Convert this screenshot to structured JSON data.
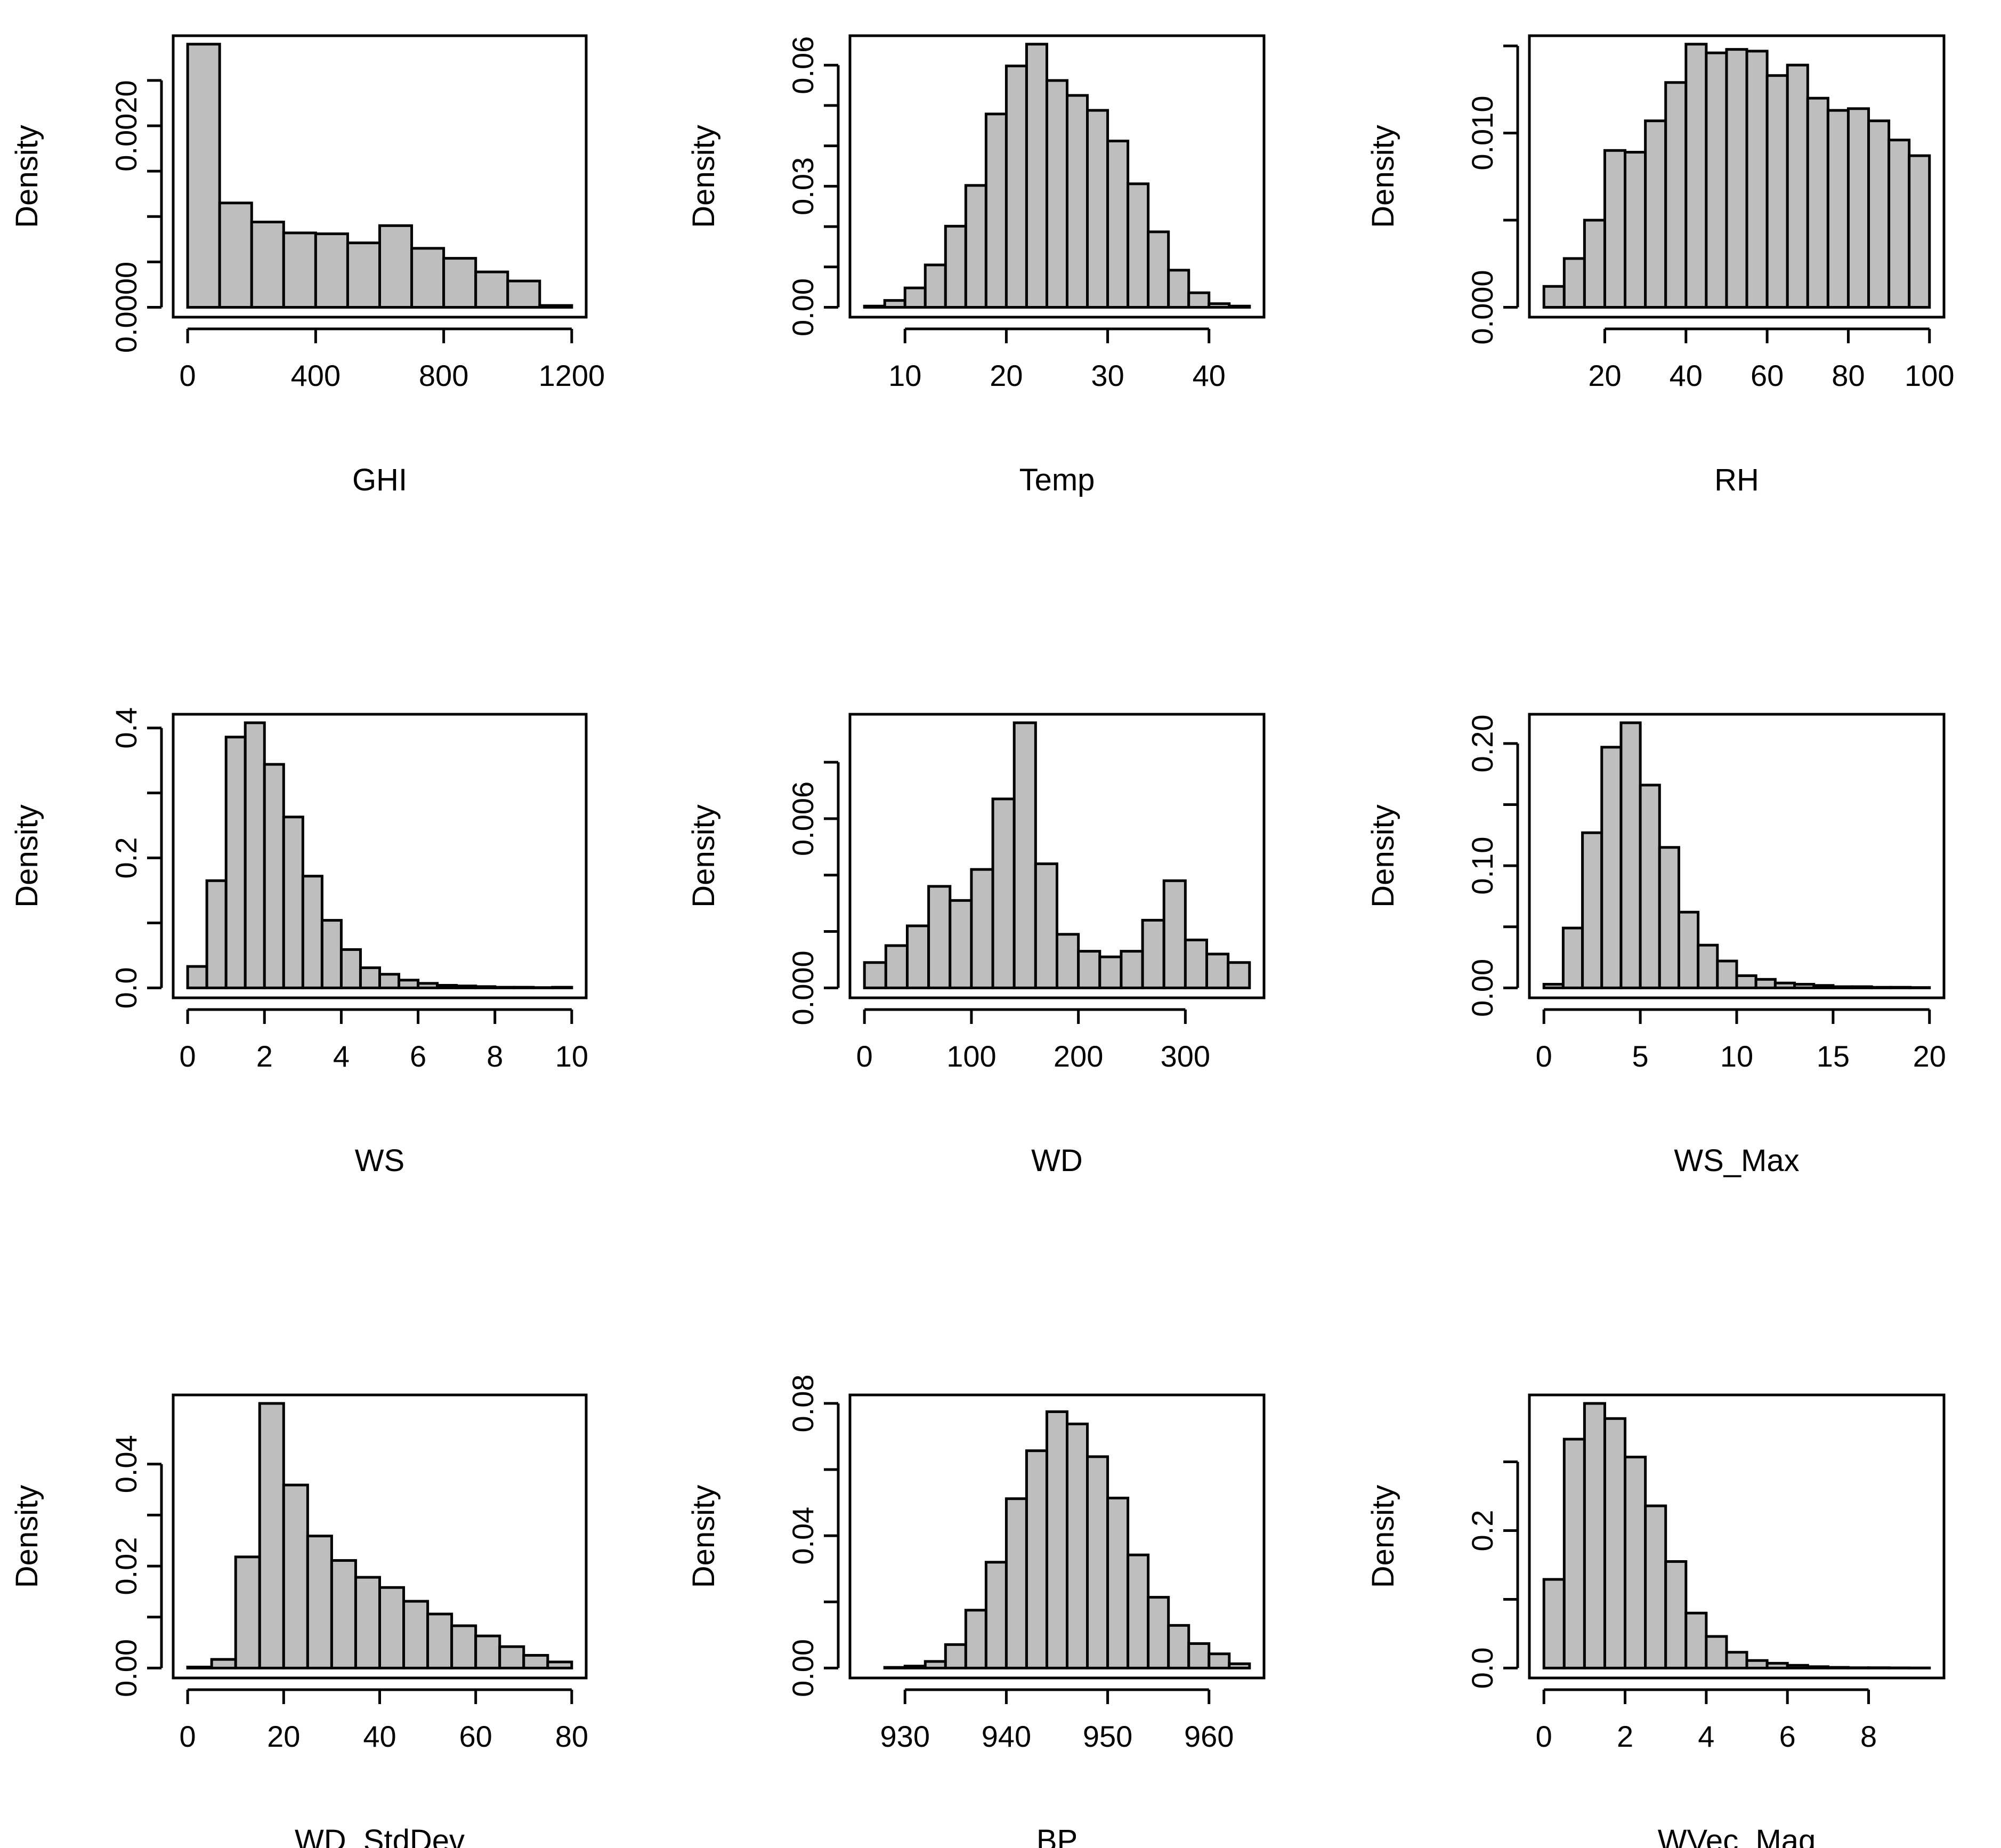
{
  "chart_data": [
    {
      "type": "bar",
      "xlabel": "GHI",
      "ylabel": "Density",
      "xlim": [
        0,
        1200
      ],
      "ylim": [
        0,
        0.0029
      ],
      "xticks": [
        0,
        400,
        800,
        1200
      ],
      "xtick_labels": [
        "0",
        "400",
        "800",
        "1200"
      ],
      "yticks": [
        0,
        0.0005,
        0.001,
        0.0015,
        0.002,
        0.0025
      ],
      "ytick_labels": [
        "0.0000",
        "",
        "",
        "",
        "0.0020",
        ""
      ],
      "bin_edges": [
        0,
        100,
        200,
        300,
        400,
        500,
        600,
        700,
        800,
        900,
        1000,
        1100,
        1200
      ],
      "values": [
        0.0029,
        0.00115,
        0.00094,
        0.00082,
        0.00081,
        0.00071,
        0.0009,
        0.00065,
        0.00054,
        0.00039,
        0.00029,
        2e-05
      ]
    },
    {
      "type": "bar",
      "xlabel": "Temp",
      "ylabel": "Density",
      "xlim": [
        6,
        42
      ],
      "ylim": [
        0,
        0.065
      ],
      "xticks": [
        10,
        20,
        30,
        40
      ],
      "xtick_labels": [
        "10",
        "20",
        "30",
        "40"
      ],
      "yticks": [
        0,
        0.01,
        0.02,
        0.03,
        0.04,
        0.05,
        0.06
      ],
      "ytick_labels": [
        "0.00",
        "",
        "",
        "0.03",
        "",
        "",
        "0.06"
      ],
      "bin_edges": [
        6,
        8,
        10,
        12,
        14,
        16,
        18,
        20,
        22,
        24,
        26,
        28,
        30,
        32,
        34,
        36,
        38,
        40,
        42,
        44
      ],
      "values": [
        0.0003,
        0.0017,
        0.0048,
        0.0105,
        0.0201,
        0.0302,
        0.0479,
        0.0598,
        0.0652,
        0.0562,
        0.0525,
        0.0488,
        0.0412,
        0.0306,
        0.0187,
        0.0092,
        0.0036,
        0.0009,
        0.0003
      ]
    },
    {
      "type": "bar",
      "xlabel": "RH",
      "ylabel": "Density",
      "xlim": [
        5,
        100
      ],
      "ylim": [
        0,
        0.015
      ],
      "xticks": [
        20,
        40,
        60,
        80,
        100
      ],
      "xtick_labels": [
        "20",
        "40",
        "60",
        "80",
        "100"
      ],
      "yticks": [
        0,
        0.005,
        0.01,
        0.015
      ],
      "ytick_labels": [
        "0.000",
        "",
        "0.010",
        ""
      ],
      "bin_edges": [
        5,
        10,
        15,
        20,
        25,
        30,
        35,
        40,
        45,
        50,
        55,
        60,
        65,
        70,
        75,
        80,
        85,
        90,
        95,
        100
      ],
      "values": [
        0.0012,
        0.0028,
        0.005,
        0.009,
        0.0089,
        0.0107,
        0.0129,
        0.0151,
        0.0146,
        0.0148,
        0.0147,
        0.0133,
        0.0139,
        0.012,
        0.0113,
        0.0114,
        0.0107,
        0.0096,
        0.0087
      ]
    },
    {
      "type": "bar",
      "xlabel": "WS",
      "ylabel": "Density",
      "xlim": [
        0,
        10
      ],
      "ylim": [
        0,
        0.4
      ],
      "xticks": [
        0,
        2,
        4,
        6,
        8,
        10
      ],
      "xtick_labels": [
        "0",
        "2",
        "4",
        "6",
        "8",
        "10"
      ],
      "yticks": [
        0,
        0.1,
        0.2,
        0.3,
        0.4
      ],
      "ytick_labels": [
        "0.0",
        "",
        "0.2",
        "",
        "0.4"
      ],
      "bin_edges": [
        0,
        0.5,
        1,
        1.5,
        2,
        2.5,
        3,
        3.5,
        4,
        4.5,
        5,
        5.5,
        6,
        6.5,
        7,
        7.5,
        8,
        8.5,
        9,
        9.5,
        10
      ],
      "values": [
        0.033,
        0.165,
        0.386,
        0.408,
        0.344,
        0.263,
        0.172,
        0.104,
        0.059,
        0.031,
        0.021,
        0.012,
        0.007,
        0.004,
        0.003,
        0.002,
        0.001,
        0.001,
        0.0005,
        0.001
      ]
    },
    {
      "type": "bar",
      "xlabel": "WD",
      "ylabel": "Density",
      "xlim": [
        0,
        360
      ],
      "ylim": [
        0,
        0.0094
      ],
      "xticks": [
        0,
        100,
        200,
        300
      ],
      "xtick_labels": [
        "0",
        "100",
        "200",
        "300"
      ],
      "yticks": [
        0,
        0.002,
        0.004,
        0.006,
        0.008
      ],
      "ytick_labels": [
        "0.000",
        "",
        "",
        "0.006",
        ""
      ],
      "bin_edges": [
        0,
        20,
        40,
        60,
        80,
        100,
        120,
        140,
        160,
        180,
        200,
        220,
        240,
        260,
        280,
        300,
        320,
        340,
        360
      ],
      "values": [
        0.0009,
        0.0015,
        0.0022,
        0.0036,
        0.0031,
        0.0042,
        0.0067,
        0.0094,
        0.0044,
        0.0019,
        0.0013,
        0.0011,
        0.0013,
        0.0024,
        0.0038,
        0.0017,
        0.0012,
        0.0009
      ]
    },
    {
      "type": "bar",
      "xlabel": "WS_Max",
      "ylabel": "Density",
      "xlim": [
        0,
        20
      ],
      "ylim": [
        0,
        0.2
      ],
      "xticks": [
        0,
        5,
        10,
        15,
        20
      ],
      "xtick_labels": [
        "0",
        "5",
        "10",
        "15",
        "20"
      ],
      "yticks": [
        0,
        0.05,
        0.1,
        0.15,
        0.2
      ],
      "ytick_labels": [
        "0.00",
        "",
        "0.10",
        "",
        "0.20"
      ],
      "bin_edges": [
        0,
        1,
        2,
        3,
        4,
        5,
        6,
        7,
        8,
        9,
        10,
        11,
        12,
        13,
        14,
        15,
        16,
        17,
        18,
        19,
        20
      ],
      "values": [
        0.003,
        0.049,
        0.127,
        0.197,
        0.217,
        0.166,
        0.115,
        0.062,
        0.035,
        0.022,
        0.01,
        0.007,
        0.004,
        0.003,
        0.002,
        0.001,
        0.001,
        0.0005,
        0.0005,
        0.0003
      ]
    },
    {
      "type": "bar",
      "xlabel": "WD_StdDev",
      "ylabel": "Density",
      "xlim": [
        0,
        80
      ],
      "ylim": [
        0,
        0.05
      ],
      "xticks": [
        0,
        20,
        40,
        60,
        80
      ],
      "xtick_labels": [
        "0",
        "20",
        "40",
        "60",
        "80"
      ],
      "yticks": [
        0,
        0.01,
        0.02,
        0.03,
        0.04
      ],
      "ytick_labels": [
        "0.00",
        "",
        "0.02",
        "",
        "0.04"
      ],
      "bin_edges": [
        0,
        5,
        10,
        15,
        20,
        25,
        30,
        35,
        40,
        45,
        50,
        55,
        60,
        65,
        70,
        75,
        80
      ],
      "values": [
        0.0002,
        0.0017,
        0.0218,
        0.0519,
        0.0359,
        0.0259,
        0.0211,
        0.0178,
        0.0158,
        0.0131,
        0.0106,
        0.0083,
        0.0063,
        0.0042,
        0.0025,
        0.0012
      ]
    },
    {
      "type": "bar",
      "xlabel": "BP",
      "ylabel": "Density",
      "xlim": [
        926,
        964
      ],
      "ylim": [
        0,
        0.08
      ],
      "xticks": [
        930,
        940,
        950,
        960
      ],
      "xtick_labels": [
        "930",
        "940",
        "950",
        "960"
      ],
      "yticks": [
        0,
        0.02,
        0.04,
        0.06,
        0.08
      ],
      "ytick_labels": [
        "0.00",
        "",
        "0.04",
        "",
        "0.08"
      ],
      "bin_edges": [
        928,
        930,
        932,
        934,
        936,
        938,
        940,
        942,
        944,
        946,
        948,
        950,
        952,
        954,
        956,
        958,
        960,
        962,
        964
      ],
      "values": [
        0.0002,
        0.0006,
        0.002,
        0.0071,
        0.0175,
        0.032,
        0.0512,
        0.0657,
        0.0775,
        0.0738,
        0.0639,
        0.0514,
        0.0342,
        0.0214,
        0.0129,
        0.0074,
        0.0043,
        0.0013
      ]
    },
    {
      "type": "bar",
      "xlabel": "WVec_Mag",
      "ylabel": "Density",
      "xlim": [
        0,
        9.5
      ],
      "ylim": [
        0,
        0.38
      ],
      "xticks": [
        0,
        2,
        4,
        6,
        8
      ],
      "xtick_labels": [
        "0",
        "2",
        "4",
        "6",
        "8"
      ],
      "yticks": [
        0,
        0.1,
        0.2,
        0.3
      ],
      "ytick_labels": [
        "0.0",
        "",
        "0.2",
        ""
      ],
      "bin_edges": [
        0,
        0.5,
        1,
        1.5,
        2,
        2.5,
        3,
        3.5,
        4,
        4.5,
        5,
        5.5,
        6,
        6.5,
        7,
        7.5,
        8,
        8.5,
        9,
        9.5
      ],
      "values": [
        0.129,
        0.333,
        0.385,
        0.363,
        0.307,
        0.236,
        0.155,
        0.08,
        0.046,
        0.023,
        0.011,
        0.007,
        0.004,
        0.002,
        0.001,
        0.0005,
        0.0005,
        0.0003,
        0.0002
      ]
    }
  ]
}
